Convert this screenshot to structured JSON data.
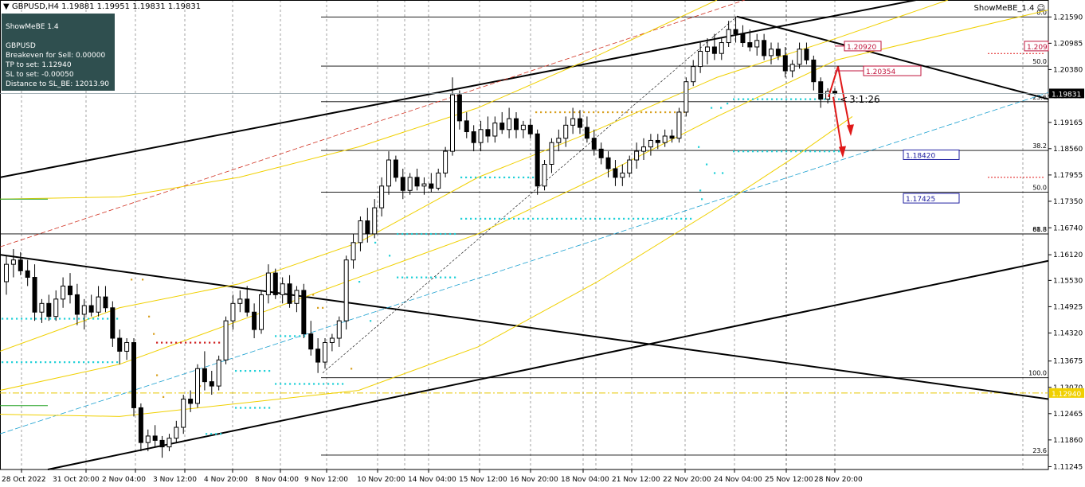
{
  "header": {
    "symbol_line": "GBPUSD,H4  1.19881 1.19951 1.19831 1.19831",
    "ea_name": "ShowMeBE_1.4",
    "ea_icon": "smiley-icon"
  },
  "panel": {
    "line1": "ShowMeBE 1.4",
    "line2": "",
    "line3": "GBPUSD",
    "line4": "Breakeven for Sell: 0.00000",
    "line5": "TP to set: 1.12940",
    "line6": "SL to set: -0.00050",
    "line7": "Distance to SL_BE: 12013.90",
    "background": "#2f4f4f"
  },
  "chart_data": {
    "type": "candlestick",
    "symbol": "GBPUSD",
    "timeframe": "H4",
    "ylim": [
      1.1118,
      1.2198
    ],
    "y_ticks": [
      "1.21590",
      "1.20985",
      "1.20380",
      "1.19775",
      "1.19165",
      "1.18560",
      "1.17955",
      "1.17350",
      "1.16740",
      "1.16120",
      "1.15530",
      "1.14925",
      "1.14320",
      "1.13675",
      "1.13070",
      "1.12465",
      "1.11860",
      "1.11245"
    ],
    "x_ticks": [
      "28 Oct 2022",
      "31 Oct 20:00",
      "2 Nov 04:00",
      "3 Nov 12:00",
      "4 Nov 20:00",
      "8 Nov 04:00",
      "9 Nov 12:00",
      "10 Nov 20:00",
      "14 Nov 04:00",
      "15 Nov 12:00",
      "16 Nov 20:00",
      "18 Nov 04:00",
      "21 Nov 12:00",
      "22 Nov 20:00",
      "24 Nov 04:00",
      "25 Nov 12:00",
      "28 Nov 20:00"
    ],
    "current_price": "1.19831",
    "yellow_level": "1.12940",
    "fib_levels": [
      {
        "label": "0.0",
        "price": 1.2159
      },
      {
        "label": "50.0",
        "price": 1.2046
      },
      {
        "label": "23.6",
        "price": 1.1964
      },
      {
        "label": "38.2",
        "price": 1.1852
      },
      {
        "label": "50.0",
        "price": 1.1756
      },
      {
        "label": "61.8",
        "price": 1.166
      },
      {
        "label": "88.8",
        "price": 1.166
      },
      {
        "label": "100.0",
        "price": 1.1329
      },
      {
        "label": "23.6",
        "price": 1.1151
      }
    ],
    "price_boxes": [
      {
        "label": "1.20920",
        "price": 1.2092,
        "color": "#c0143c"
      },
      {
        "label": "1.20354",
        "price": 1.2035,
        "color": "#c0143c"
      },
      {
        "label": "1.209",
        "price": 1.2092,
        "color": "#c0143c"
      },
      {
        "label": "1.18420",
        "price": 1.1842,
        "color": "#2020a0"
      },
      {
        "label": "1.17425",
        "price": 1.1742,
        "color": "#2020a0"
      }
    ],
    "rr_label": "3:1:26",
    "candles": [
      [
        1.155,
        1.161,
        1.152,
        1.159
      ],
      [
        1.159,
        1.1625,
        1.156,
        1.16
      ],
      [
        1.16,
        1.1618,
        1.1565,
        1.1575
      ],
      [
        1.1575,
        1.16,
        1.154,
        1.156
      ],
      [
        1.156,
        1.159,
        1.146,
        1.148
      ],
      [
        1.148,
        1.151,
        1.1455,
        1.15
      ],
      [
        1.15,
        1.152,
        1.146,
        1.147
      ],
      [
        1.147,
        1.153,
        1.146,
        1.151
      ],
      [
        1.151,
        1.156,
        1.149,
        1.154
      ],
      [
        1.154,
        1.157,
        1.15,
        1.152
      ],
      [
        1.152,
        1.1545,
        1.145,
        1.1475
      ],
      [
        1.1475,
        1.151,
        1.144,
        1.1495
      ],
      [
        1.1495,
        1.152,
        1.147,
        1.148
      ],
      [
        1.148,
        1.154,
        1.147,
        1.1515
      ],
      [
        1.1515,
        1.154,
        1.148,
        1.149
      ],
      [
        1.149,
        1.1505,
        1.14,
        1.142
      ],
      [
        1.142,
        1.144,
        1.136,
        1.139
      ],
      [
        1.139,
        1.142,
        1.137,
        1.141
      ],
      [
        1.141,
        1.142,
        1.124,
        1.126
      ],
      [
        1.126,
        1.127,
        1.116,
        1.118
      ],
      [
        1.118,
        1.121,
        1.116,
        1.1195
      ],
      [
        1.1195,
        1.122,
        1.117,
        1.1185
      ],
      [
        1.1185,
        1.1195,
        1.1145,
        1.117
      ],
      [
        1.117,
        1.12,
        1.116,
        1.119
      ],
      [
        1.119,
        1.123,
        1.118,
        1.1215
      ],
      [
        1.1215,
        1.129,
        1.12,
        1.128
      ],
      [
        1.128,
        1.13,
        1.125,
        1.127
      ],
      [
        1.127,
        1.136,
        1.126,
        1.135
      ],
      [
        1.135,
        1.139,
        1.13,
        1.132
      ],
      [
        1.132,
        1.1345,
        1.129,
        1.131
      ],
      [
        1.131,
        1.138,
        1.13,
        1.137
      ],
      [
        1.137,
        1.147,
        1.136,
        1.146
      ],
      [
        1.146,
        1.152,
        1.144,
        1.15
      ],
      [
        1.15,
        1.153,
        1.148,
        1.151
      ],
      [
        1.151,
        1.154,
        1.147,
        1.148
      ],
      [
        1.148,
        1.15,
        1.142,
        1.144
      ],
      [
        1.144,
        1.153,
        1.143,
        1.152
      ],
      [
        1.152,
        1.159,
        1.15,
        1.157
      ],
      [
        1.157,
        1.158,
        1.151,
        1.152
      ],
      [
        1.152,
        1.156,
        1.15,
        1.1545
      ],
      [
        1.1545,
        1.1565,
        1.149,
        1.15
      ],
      [
        1.15,
        1.154,
        1.148,
        1.153
      ],
      [
        1.153,
        1.1545,
        1.142,
        1.143
      ],
      [
        1.143,
        1.146,
        1.138,
        1.1395
      ],
      [
        1.1395,
        1.142,
        1.134,
        1.1365
      ],
      [
        1.1365,
        1.142,
        1.135,
        1.141
      ],
      [
        1.141,
        1.143,
        1.139,
        1.142
      ],
      [
        1.142,
        1.147,
        1.14,
        1.146
      ],
      [
        1.146,
        1.161,
        1.144,
        1.16
      ],
      [
        1.16,
        1.166,
        1.158,
        1.164
      ],
      [
        1.164,
        1.17,
        1.162,
        1.169
      ],
      [
        1.169,
        1.172,
        1.164,
        1.166
      ],
      [
        1.166,
        1.174,
        1.165,
        1.172
      ],
      [
        1.172,
        1.179,
        1.17,
        1.177
      ],
      [
        1.177,
        1.185,
        1.175,
        1.183
      ],
      [
        1.183,
        1.184,
        1.178,
        1.179
      ],
      [
        1.179,
        1.181,
        1.174,
        1.176
      ],
      [
        1.176,
        1.18,
        1.175,
        1.179
      ],
      [
        1.179,
        1.181,
        1.176,
        1.177
      ],
      [
        1.177,
        1.179,
        1.175,
        1.1775
      ],
      [
        1.1775,
        1.18,
        1.1755,
        1.1765
      ],
      [
        1.1765,
        1.181,
        1.176,
        1.18
      ],
      [
        1.18,
        1.186,
        1.179,
        1.185
      ],
      [
        1.185,
        1.202,
        1.184,
        1.198
      ],
      [
        1.198,
        1.199,
        1.19,
        1.192
      ],
      [
        1.192,
        1.194,
        1.188,
        1.1895
      ],
      [
        1.1895,
        1.191,
        1.185,
        1.187
      ],
      [
        1.187,
        1.192,
        1.185,
        1.19
      ],
      [
        1.19,
        1.193,
        1.187,
        1.1885
      ],
      [
        1.1885,
        1.193,
        1.187,
        1.1915
      ],
      [
        1.1915,
        1.194,
        1.189,
        1.19
      ],
      [
        1.19,
        1.195,
        1.188,
        1.1925
      ],
      [
        1.1925,
        1.194,
        1.188,
        1.19
      ],
      [
        1.19,
        1.192,
        1.188,
        1.191
      ],
      [
        1.191,
        1.1925,
        1.188,
        1.189
      ],
      [
        1.189,
        1.19,
        1.175,
        1.177
      ],
      [
        1.177,
        1.183,
        1.176,
        1.182
      ],
      [
        1.182,
        1.188,
        1.18,
        1.187
      ],
      [
        1.187,
        1.19,
        1.185,
        1.188
      ],
      [
        1.188,
        1.193,
        1.186,
        1.191
      ],
      [
        1.191,
        1.195,
        1.189,
        1.1925
      ],
      [
        1.1925,
        1.1945,
        1.189,
        1.1905
      ],
      [
        1.1905,
        1.193,
        1.187,
        1.188
      ],
      [
        1.188,
        1.19,
        1.184,
        1.1855
      ],
      [
        1.1855,
        1.187,
        1.182,
        1.1835
      ],
      [
        1.1835,
        1.185,
        1.179,
        1.181
      ],
      [
        1.181,
        1.183,
        1.177,
        1.179
      ],
      [
        1.179,
        1.182,
        1.177,
        1.18
      ],
      [
        1.18,
        1.184,
        1.179,
        1.183
      ],
      [
        1.183,
        1.187,
        1.181,
        1.185
      ],
      [
        1.185,
        1.188,
        1.183,
        1.186
      ],
      [
        1.186,
        1.189,
        1.184,
        1.1875
      ],
      [
        1.1875,
        1.189,
        1.1855,
        1.187
      ],
      [
        1.187,
        1.19,
        1.186,
        1.1885
      ],
      [
        1.1885,
        1.19,
        1.187,
        1.188
      ],
      [
        1.188,
        1.195,
        1.187,
        1.194
      ],
      [
        1.194,
        1.202,
        1.193,
        1.201
      ],
      [
        1.201,
        1.206,
        1.2,
        1.2045
      ],
      [
        1.2045,
        1.21,
        1.203,
        1.208
      ],
      [
        1.208,
        1.211,
        1.205,
        1.209
      ],
      [
        1.209,
        1.212,
        1.206,
        1.2075
      ],
      [
        1.2075,
        1.211,
        1.206,
        1.21
      ],
      [
        1.21,
        1.215,
        1.209,
        1.213
      ],
      [
        1.213,
        1.216,
        1.21,
        1.212
      ],
      [
        1.212,
        1.214,
        1.209,
        1.21
      ],
      [
        1.21,
        1.213,
        1.208,
        1.209
      ],
      [
        1.209,
        1.212,
        1.207,
        1.2105
      ],
      [
        1.2105,
        1.212,
        1.206,
        1.207
      ],
      [
        1.207,
        1.21,
        1.205,
        1.2085
      ],
      [
        1.2085,
        1.21,
        1.206,
        1.207
      ],
      [
        1.207,
        1.209,
        1.202,
        1.2035
      ],
      [
        1.2035,
        1.206,
        1.202,
        1.205
      ],
      [
        1.205,
        1.21,
        1.204,
        1.2085
      ],
      [
        1.2085,
        1.21,
        1.205,
        1.206
      ],
      [
        1.206,
        1.207,
        1.199,
        1.201
      ],
      [
        1.201,
        1.202,
        1.195,
        1.197
      ],
      [
        1.197,
        1.1995,
        1.196,
        1.1988
      ],
      [
        1.1988,
        1.1995,
        1.198,
        1.1983
      ]
    ]
  }
}
